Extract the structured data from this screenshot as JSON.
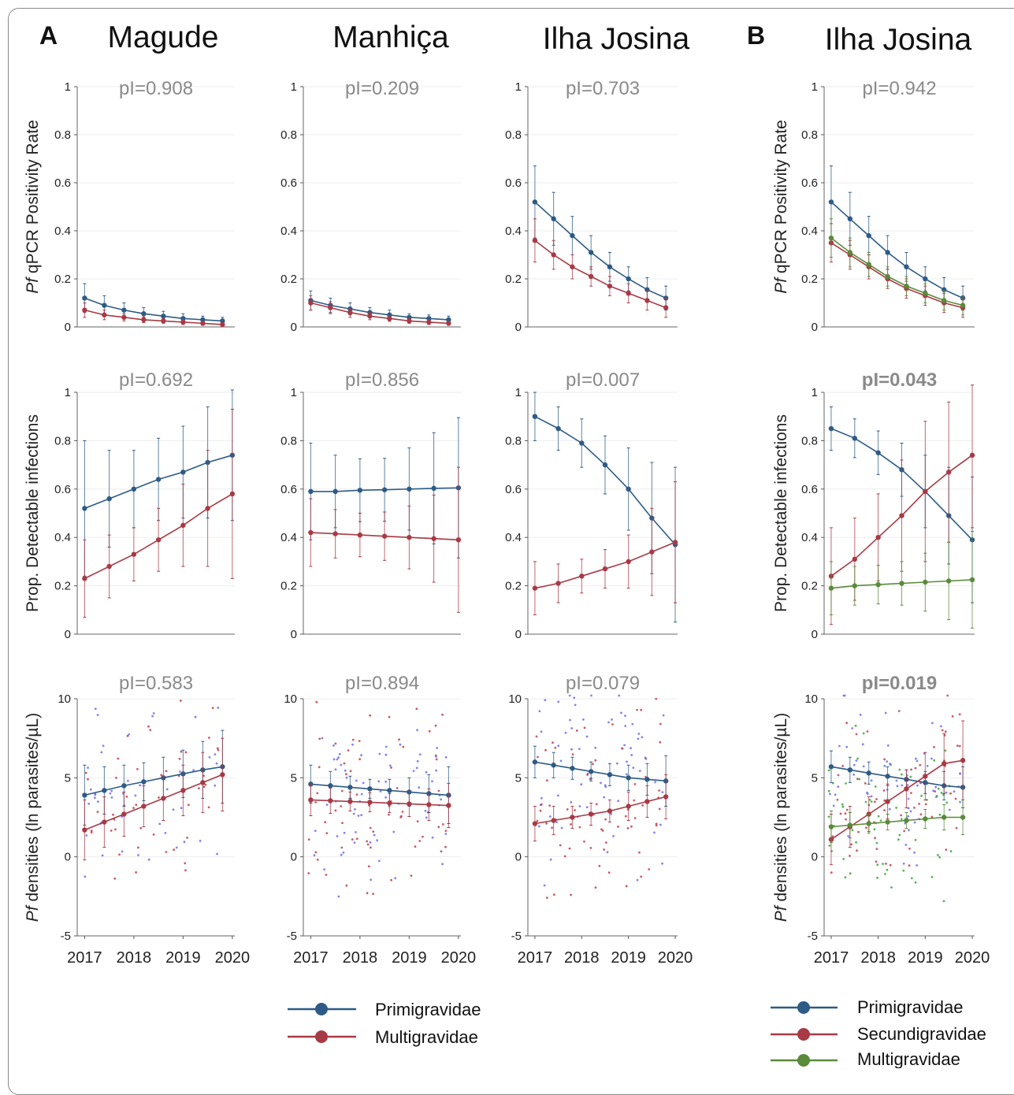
{
  "panel_labels": {
    "a": "A",
    "b": "B"
  },
  "column_titles": [
    "Magude",
    "Manhiça",
    "Ilha Josina",
    "Ilha Josina"
  ],
  "row_ylabels": {
    "rate": {
      "italic": "Pf",
      "rest": " qPCR Positivity Rate"
    },
    "prop": {
      "italic": "",
      "rest": "Prop. Detectable infections"
    },
    "dens": {
      "italic": "Pf",
      "rest": " densities (ln parasites/µL)"
    }
  },
  "colors": {
    "primi": "#2d5b86",
    "multiA": "#a83a45",
    "secundi": "#a83a45",
    "multiB": "#5a8a3a"
  },
  "legend_a": [
    {
      "name": "Primigravidae",
      "color": "#2d5b86"
    },
    {
      "name": "Multigravidae",
      "color": "#a83a45"
    }
  ],
  "legend_b": [
    {
      "name": "Primigravidae",
      "color": "#2d5b86"
    },
    {
      "name": "Secundigravidae",
      "color": "#a83a45"
    },
    {
      "name": "Multigravidae",
      "color": "#5a8a3a"
    }
  ],
  "chart_data": [
    {
      "id": "rate-magude",
      "type": "line",
      "row": "rate",
      "col": 0,
      "pvalue": "pI=0.908",
      "pbold": false,
      "ylim": [
        0,
        1
      ],
      "yticks": [
        0,
        0.2,
        0.4,
        0.6,
        0.8,
        1
      ],
      "x": [
        2017.0,
        2017.4,
        2017.8,
        2018.2,
        2018.6,
        2019.0,
        2019.4,
        2019.8
      ],
      "series": [
        {
          "key": "primi",
          "values": [
            0.12,
            0.09,
            0.07,
            0.055,
            0.045,
            0.035,
            0.03,
            0.025
          ],
          "err": [
            0.06,
            0.04,
            0.03,
            0.025,
            0.02,
            0.02,
            0.015,
            0.015
          ]
        },
        {
          "key": "multiA",
          "values": [
            0.07,
            0.05,
            0.04,
            0.03,
            0.025,
            0.02,
            0.015,
            0.01
          ],
          "err": [
            0.03,
            0.02,
            0.015,
            0.012,
            0.01,
            0.01,
            0.008,
            0.008
          ]
        }
      ]
    },
    {
      "id": "rate-manhica",
      "type": "line",
      "row": "rate",
      "col": 1,
      "pvalue": "pI=0.209",
      "pbold": false,
      "ylim": [
        0,
        1
      ],
      "yticks": [
        0,
        0.2,
        0.4,
        0.6,
        0.8,
        1
      ],
      "x": [
        2017.0,
        2017.4,
        2017.8,
        2018.2,
        2018.6,
        2019.0,
        2019.4,
        2019.8
      ],
      "series": [
        {
          "key": "primi",
          "values": [
            0.11,
            0.09,
            0.075,
            0.06,
            0.05,
            0.04,
            0.035,
            0.03
          ],
          "err": [
            0.04,
            0.03,
            0.025,
            0.02,
            0.02,
            0.015,
            0.015,
            0.015
          ]
        },
        {
          "key": "multiA",
          "values": [
            0.1,
            0.08,
            0.06,
            0.045,
            0.035,
            0.025,
            0.02,
            0.015
          ],
          "err": [
            0.03,
            0.025,
            0.02,
            0.015,
            0.012,
            0.01,
            0.01,
            0.008
          ]
        }
      ]
    },
    {
      "id": "rate-ilha-a",
      "type": "line",
      "row": "rate",
      "col": 2,
      "pvalue": "pI=0.703",
      "pbold": false,
      "ylim": [
        0,
        1
      ],
      "yticks": [
        0,
        0.2,
        0.4,
        0.6,
        0.8,
        1
      ],
      "x": [
        2017.0,
        2017.4,
        2017.8,
        2018.2,
        2018.6,
        2019.0,
        2019.4,
        2019.8
      ],
      "series": [
        {
          "key": "primi",
          "values": [
            0.52,
            0.45,
            0.38,
            0.31,
            0.25,
            0.2,
            0.155,
            0.12
          ],
          "err": [
            0.15,
            0.11,
            0.08,
            0.07,
            0.06,
            0.05,
            0.05,
            0.05
          ]
        },
        {
          "key": "multiA",
          "values": [
            0.36,
            0.3,
            0.25,
            0.21,
            0.17,
            0.14,
            0.11,
            0.08
          ],
          "err": [
            0.09,
            0.06,
            0.05,
            0.04,
            0.04,
            0.04,
            0.04,
            0.04
          ]
        }
      ]
    },
    {
      "id": "rate-ilha-b",
      "type": "line",
      "row": "rate",
      "col": 3,
      "pvalue": "pI=0.942",
      "pbold": false,
      "ylim": [
        0,
        1
      ],
      "yticks": [
        0,
        0.2,
        0.4,
        0.6,
        0.8,
        1
      ],
      "x": [
        2017.0,
        2017.4,
        2017.8,
        2018.2,
        2018.6,
        2019.0,
        2019.4,
        2019.8
      ],
      "series": [
        {
          "key": "primi",
          "values": [
            0.52,
            0.45,
            0.38,
            0.31,
            0.25,
            0.2,
            0.155,
            0.12
          ],
          "err": [
            0.15,
            0.11,
            0.08,
            0.07,
            0.06,
            0.05,
            0.05,
            0.05
          ]
        },
        {
          "key": "secundi",
          "values": [
            0.35,
            0.3,
            0.25,
            0.2,
            0.16,
            0.13,
            0.1,
            0.08
          ],
          "err": [
            0.08,
            0.06,
            0.05,
            0.04,
            0.04,
            0.04,
            0.04,
            0.04
          ]
        },
        {
          "key": "multiB",
          "values": [
            0.37,
            0.31,
            0.26,
            0.21,
            0.17,
            0.14,
            0.11,
            0.09
          ],
          "err": [
            0.08,
            0.06,
            0.05,
            0.04,
            0.04,
            0.04,
            0.04,
            0.04
          ]
        }
      ]
    },
    {
      "id": "prop-magude",
      "type": "line",
      "row": "prop",
      "col": 0,
      "pvalue": "pI=0.692",
      "pbold": false,
      "ylim": [
        0,
        1
      ],
      "yticks": [
        0,
        0.2,
        0.4,
        0.6,
        0.8,
        1
      ],
      "x": [
        2017.0,
        2017.5,
        2018.0,
        2018.5,
        2019.0,
        2019.5,
        2020.0
      ],
      "series": [
        {
          "key": "primi",
          "values": [
            0.52,
            0.56,
            0.6,
            0.64,
            0.67,
            0.71,
            0.74
          ],
          "err": [
            0.28,
            0.2,
            0.16,
            0.17,
            0.19,
            0.23,
            0.27
          ]
        },
        {
          "key": "multiA",
          "values": [
            0.23,
            0.28,
            0.33,
            0.39,
            0.45,
            0.52,
            0.58
          ],
          "err": [
            0.16,
            0.13,
            0.11,
            0.13,
            0.17,
            0.24,
            0.35
          ]
        }
      ]
    },
    {
      "id": "prop-manhica",
      "type": "line",
      "row": "prop",
      "col": 1,
      "pvalue": "pI=0.856",
      "pbold": false,
      "ylim": [
        0,
        1
      ],
      "yticks": [
        0,
        0.2,
        0.4,
        0.6,
        0.8,
        1
      ],
      "x": [
        2017.0,
        2017.5,
        2018.0,
        2018.5,
        2019.0,
        2019.5,
        2020.0
      ],
      "series": [
        {
          "key": "primi",
          "values": [
            0.59,
            0.59,
            0.595,
            0.597,
            0.6,
            0.603,
            0.605
          ],
          "err": [
            0.2,
            0.15,
            0.13,
            0.13,
            0.17,
            0.23,
            0.29
          ]
        },
        {
          "key": "multiA",
          "values": [
            0.42,
            0.415,
            0.41,
            0.405,
            0.4,
            0.395,
            0.39
          ],
          "err": [
            0.14,
            0.1,
            0.09,
            0.1,
            0.13,
            0.18,
            0.3
          ]
        }
      ]
    },
    {
      "id": "prop-ilha-a",
      "type": "line",
      "row": "prop",
      "col": 2,
      "pvalue": "pI=0.007",
      "pbold": false,
      "ylim": [
        0,
        1
      ],
      "yticks": [
        0,
        0.2,
        0.4,
        0.6,
        0.8,
        1
      ],
      "x": [
        2017.0,
        2017.5,
        2018.0,
        2018.5,
        2019.0,
        2019.5,
        2020.0
      ],
      "series": [
        {
          "key": "primi",
          "values": [
            0.9,
            0.85,
            0.79,
            0.7,
            0.6,
            0.48,
            0.37
          ],
          "err": [
            0.1,
            0.09,
            0.1,
            0.12,
            0.17,
            0.23,
            0.32
          ]
        },
        {
          "key": "multiA",
          "values": [
            0.19,
            0.21,
            0.24,
            0.27,
            0.3,
            0.34,
            0.38
          ],
          "err": [
            0.11,
            0.08,
            0.07,
            0.08,
            0.11,
            0.18,
            0.25
          ]
        }
      ]
    },
    {
      "id": "prop-ilha-b",
      "type": "line",
      "row": "prop",
      "col": 3,
      "pvalue": "pI=0.043",
      "pbold": true,
      "ylim": [
        0,
        1
      ],
      "yticks": [
        0,
        0.2,
        0.4,
        0.6,
        0.8,
        1
      ],
      "x": [
        2017.0,
        2017.5,
        2018.0,
        2018.5,
        2019.0,
        2019.5,
        2020.0
      ],
      "series": [
        {
          "key": "primi",
          "values": [
            0.85,
            0.81,
            0.75,
            0.68,
            0.59,
            0.49,
            0.39
          ],
          "err": [
            0.09,
            0.08,
            0.09,
            0.11,
            0.15,
            0.2,
            0.26
          ]
        },
        {
          "key": "secundi",
          "values": [
            0.24,
            0.31,
            0.4,
            0.49,
            0.59,
            0.67,
            0.74
          ],
          "err": [
            0.2,
            0.17,
            0.18,
            0.23,
            0.29,
            0.29,
            0.3
          ]
        },
        {
          "key": "multiB",
          "values": [
            0.19,
            0.2,
            0.205,
            0.21,
            0.215,
            0.22,
            0.225
          ],
          "err": [
            0.11,
            0.08,
            0.08,
            0.09,
            0.12,
            0.16,
            0.2
          ]
        }
      ]
    },
    {
      "id": "dens-magude",
      "type": "line",
      "row": "dens",
      "col": 0,
      "pvalue": "pI=0.583",
      "pbold": false,
      "ylim": [
        -5,
        10
      ],
      "yticks": [
        -5,
        0,
        5,
        10
      ],
      "scatter_n": 95,
      "x": [
        2017.0,
        2017.4,
        2017.8,
        2018.2,
        2018.6,
        2019.0,
        2019.4,
        2019.8
      ],
      "series": [
        {
          "key": "primi",
          "values": [
            3.9,
            4.2,
            4.5,
            4.75,
            5.0,
            5.25,
            5.5,
            5.7
          ],
          "err": [
            1.9,
            1.5,
            1.3,
            1.2,
            1.3,
            1.5,
            1.8,
            2.3
          ]
        },
        {
          "key": "multiA",
          "values": [
            1.7,
            2.2,
            2.7,
            3.2,
            3.7,
            4.2,
            4.7,
            5.2
          ],
          "err": [
            1.9,
            1.6,
            1.4,
            1.3,
            1.4,
            1.6,
            1.9,
            2.3
          ]
        }
      ]
    },
    {
      "id": "dens-manhica",
      "type": "line",
      "row": "dens",
      "col": 1,
      "pvalue": "pI=0.894",
      "pbold": false,
      "ylim": [
        -5,
        10
      ],
      "yticks": [
        -5,
        0,
        5,
        10
      ],
      "scatter_n": 140,
      "x": [
        2017.0,
        2017.4,
        2017.8,
        2018.2,
        2018.6,
        2019.0,
        2019.4,
        2019.8
      ],
      "series": [
        {
          "key": "primi",
          "values": [
            4.6,
            4.5,
            4.4,
            4.3,
            4.2,
            4.1,
            4.0,
            3.9
          ],
          "err": [
            1.2,
            0.9,
            0.7,
            0.6,
            0.7,
            0.9,
            1.2,
            1.8
          ]
        },
        {
          "key": "multiA",
          "values": [
            3.6,
            3.55,
            3.5,
            3.45,
            3.4,
            3.35,
            3.3,
            3.25
          ],
          "err": [
            1.0,
            0.8,
            0.6,
            0.6,
            0.6,
            0.8,
            1.0,
            1.4
          ]
        }
      ]
    },
    {
      "id": "dens-ilha-a",
      "type": "line",
      "row": "dens",
      "col": 2,
      "pvalue": "pI=0.079",
      "pbold": false,
      "ylim": [
        -5,
        10
      ],
      "yticks": [
        -5,
        0,
        5,
        10
      ],
      "scatter_n": 140,
      "x": [
        2017.0,
        2017.4,
        2017.8,
        2018.2,
        2018.6,
        2019.0,
        2019.4,
        2019.8
      ],
      "series": [
        {
          "key": "primi",
          "values": [
            6.0,
            5.8,
            5.6,
            5.4,
            5.2,
            5.0,
            4.9,
            4.8
          ],
          "err": [
            1.0,
            0.8,
            0.7,
            0.6,
            0.7,
            0.8,
            1.0,
            1.6
          ]
        },
        {
          "key": "multiA",
          "values": [
            2.1,
            2.3,
            2.5,
            2.7,
            2.9,
            3.2,
            3.5,
            3.8
          ],
          "err": [
            1.1,
            0.9,
            0.7,
            0.7,
            0.7,
            0.9,
            1.0,
            1.4
          ]
        }
      ]
    },
    {
      "id": "dens-ilha-b",
      "type": "line",
      "row": "dens",
      "col": 3,
      "pvalue": "pI=0.019",
      "pbold": true,
      "ylim": [
        -5,
        10
      ],
      "yticks": [
        -5,
        0,
        5,
        10
      ],
      "scatter_n": 190,
      "x": [
        2017.0,
        2017.4,
        2017.8,
        2018.2,
        2018.6,
        2019.0,
        2019.4,
        2019.8
      ],
      "series": [
        {
          "key": "primi",
          "values": [
            5.7,
            5.5,
            5.3,
            5.1,
            4.9,
            4.7,
            4.5,
            4.4
          ],
          "err": [
            1.0,
            0.8,
            0.7,
            0.6,
            0.6,
            0.7,
            0.9,
            1.3
          ]
        },
        {
          "key": "secundi",
          "values": [
            1.1,
            1.9,
            2.7,
            3.5,
            4.3,
            5.1,
            5.9,
            6.1
          ],
          "err": [
            1.6,
            1.3,
            1.1,
            1.1,
            1.2,
            1.5,
            1.9,
            2.5
          ]
        },
        {
          "key": "multiB",
          "values": [
            1.9,
            2.0,
            2.1,
            2.2,
            2.3,
            2.4,
            2.5,
            2.5
          ],
          "err": [
            1.0,
            0.8,
            0.6,
            0.5,
            0.5,
            0.6,
            0.8,
            1.1
          ]
        }
      ]
    }
  ],
  "x_ticks": [
    "2017",
    "2018",
    "2019",
    "2020"
  ],
  "x_tick_values": [
    2017,
    2018,
    2019,
    2020
  ],
  "xlim": [
    2016.85,
    2020.05
  ]
}
